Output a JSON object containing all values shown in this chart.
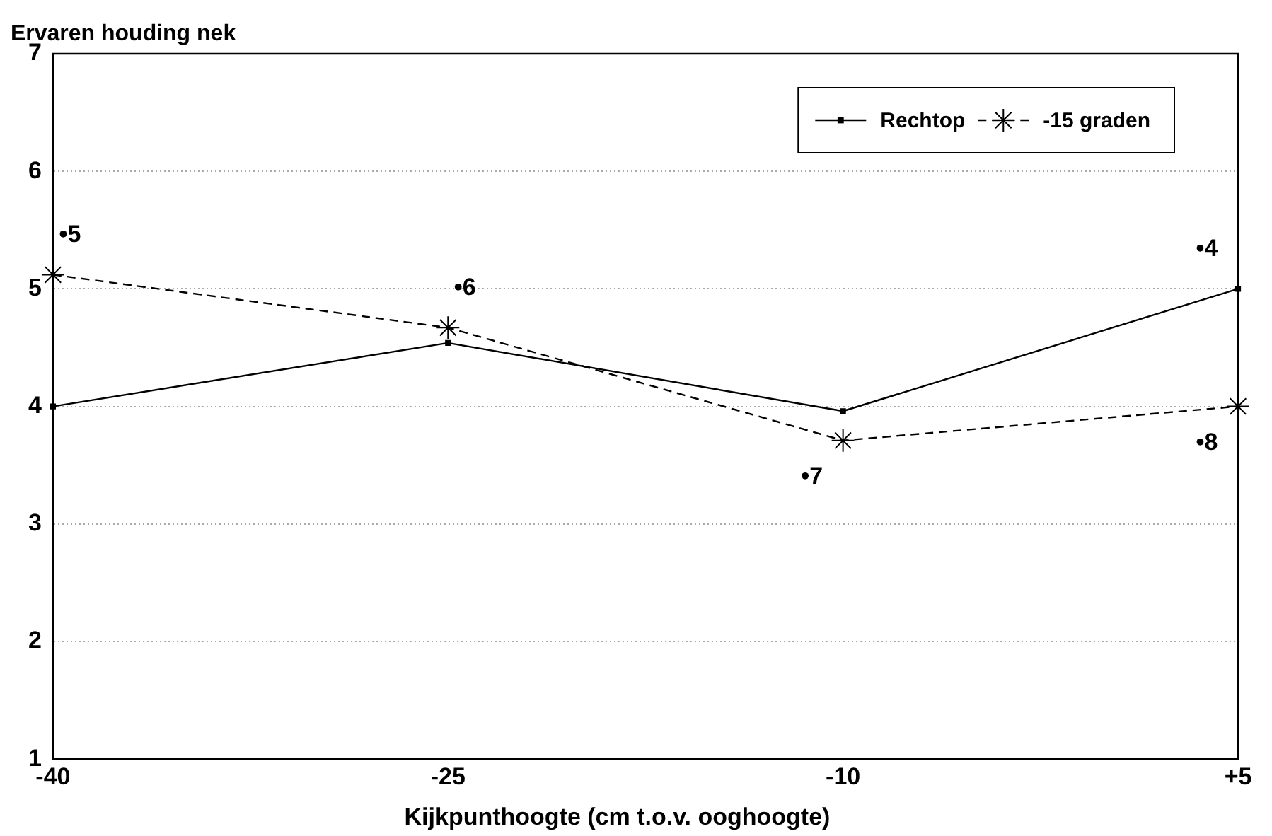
{
  "chart_data": {
    "type": "line",
    "ylabel": "Ervaren houding nek",
    "xlabel": "Kijkpunthoogte (cm t.o.v. ooghoogte)",
    "x": [
      -40,
      -25,
      -10,
      5
    ],
    "series": [
      {
        "name": "Rechtop",
        "color": "#000000",
        "values": [
          4.0,
          4.54,
          3.96,
          5.0
        ],
        "marker": "square",
        "line_style": "solid"
      },
      {
        "name": "-15 graden",
        "color": "#000000",
        "values": [
          5.12,
          4.67,
          3.71,
          4.0
        ],
        "marker": "cross",
        "line_style": "dashed"
      }
    ],
    "xlim": [
      -40,
      5
    ],
    "xticks": [
      -40,
      -25,
      -10,
      {
        "value": 5,
        "label": "+5"
      }
    ],
    "ylim": [
      1,
      7
    ],
    "yticks": [
      1,
      2,
      3,
      4,
      5,
      6,
      7
    ],
    "grid": "y",
    "legend": "top right",
    "annotations": [
      {
        "text": "•5",
        "x": -40,
        "y": 5.12
      },
      {
        "text": "•6",
        "x": -25,
        "y": 4.67
      },
      {
        "text": "•7",
        "x": -10,
        "y": 3.71
      },
      {
        "text": "•8",
        "x": 5,
        "y": 4.0
      },
      {
        "text": "•4",
        "x": 5,
        "y": 5.0
      }
    ]
  }
}
